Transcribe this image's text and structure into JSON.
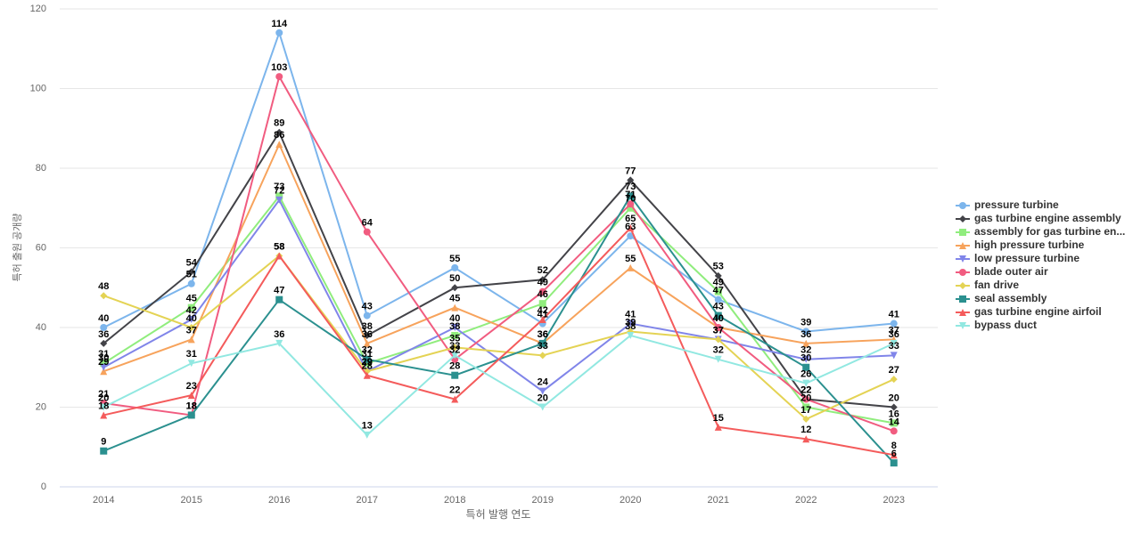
{
  "chart_data": {
    "type": "line",
    "y_label": "특허 출원 공개량",
    "x_label": "특허 발행 연도",
    "categories": [
      "2014",
      "2015",
      "2016",
      "2017",
      "2018",
      "2019",
      "2020",
      "2021",
      "2022",
      "2023"
    ],
    "ylim": [
      0,
      120
    ],
    "yticks": [
      0,
      20,
      40,
      60,
      80,
      100,
      120
    ],
    "grid": true,
    "legend": "right",
    "series": [
      {
        "name": "pressure turbine",
        "color": "#7cb5ec",
        "marker": "circle",
        "values": [
          40,
          51,
          114,
          43,
          55,
          41,
          63,
          47,
          39,
          41
        ]
      },
      {
        "name": "gas turbine engine assembly",
        "color": "#434348",
        "marker": "diamond",
        "values": [
          36,
          54,
          89,
          38,
          50,
          52,
          77,
          53,
          22,
          20
        ]
      },
      {
        "name": "assembly for gas turbine en...",
        "color": "#90ed7d",
        "marker": "square",
        "values": [
          31,
          45,
          73,
          31,
          38,
          46,
          70,
          49,
          20,
          16
        ]
      },
      {
        "name": "high pressure turbine",
        "color": "#f7a35c",
        "marker": "triangle",
        "values": [
          29,
          37,
          86,
          36,
          45,
          36,
          55,
          40,
          36,
          37
        ]
      },
      {
        "name": "low pressure turbine",
        "color": "#8085e9",
        "marker": "triangle-down",
        "values": [
          30,
          42,
          72,
          29,
          40,
          24,
          41,
          37,
          32,
          33
        ]
      },
      {
        "name": "blade outer air",
        "color": "#f15c80",
        "marker": "circle",
        "values": [
          21,
          18,
          103,
          64,
          32,
          49,
          71,
          40,
          22,
          14
        ]
      },
      {
        "name": "fan drive",
        "color": "#e4d354",
        "marker": "diamond",
        "values": [
          48,
          40,
          58,
          29,
          35,
          33,
          39,
          37,
          17,
          27
        ]
      },
      {
        "name": "seal assembly",
        "color": "#2b908f",
        "marker": "square",
        "values": [
          9,
          18,
          47,
          32,
          28,
          36,
          73,
          43,
          30,
          6
        ]
      },
      {
        "name": "gas turbine engine airfoil",
        "color": "#f45b5b",
        "marker": "triangle",
        "values": [
          18,
          23,
          58,
          28,
          22,
          42,
          65,
          15,
          12,
          8
        ]
      },
      {
        "name": "bypass duct",
        "color": "#91e8e1",
        "marker": "triangle-down",
        "values": [
          20,
          31,
          36,
          13,
          33,
          20,
          38,
          32,
          26,
          36
        ]
      }
    ]
  }
}
